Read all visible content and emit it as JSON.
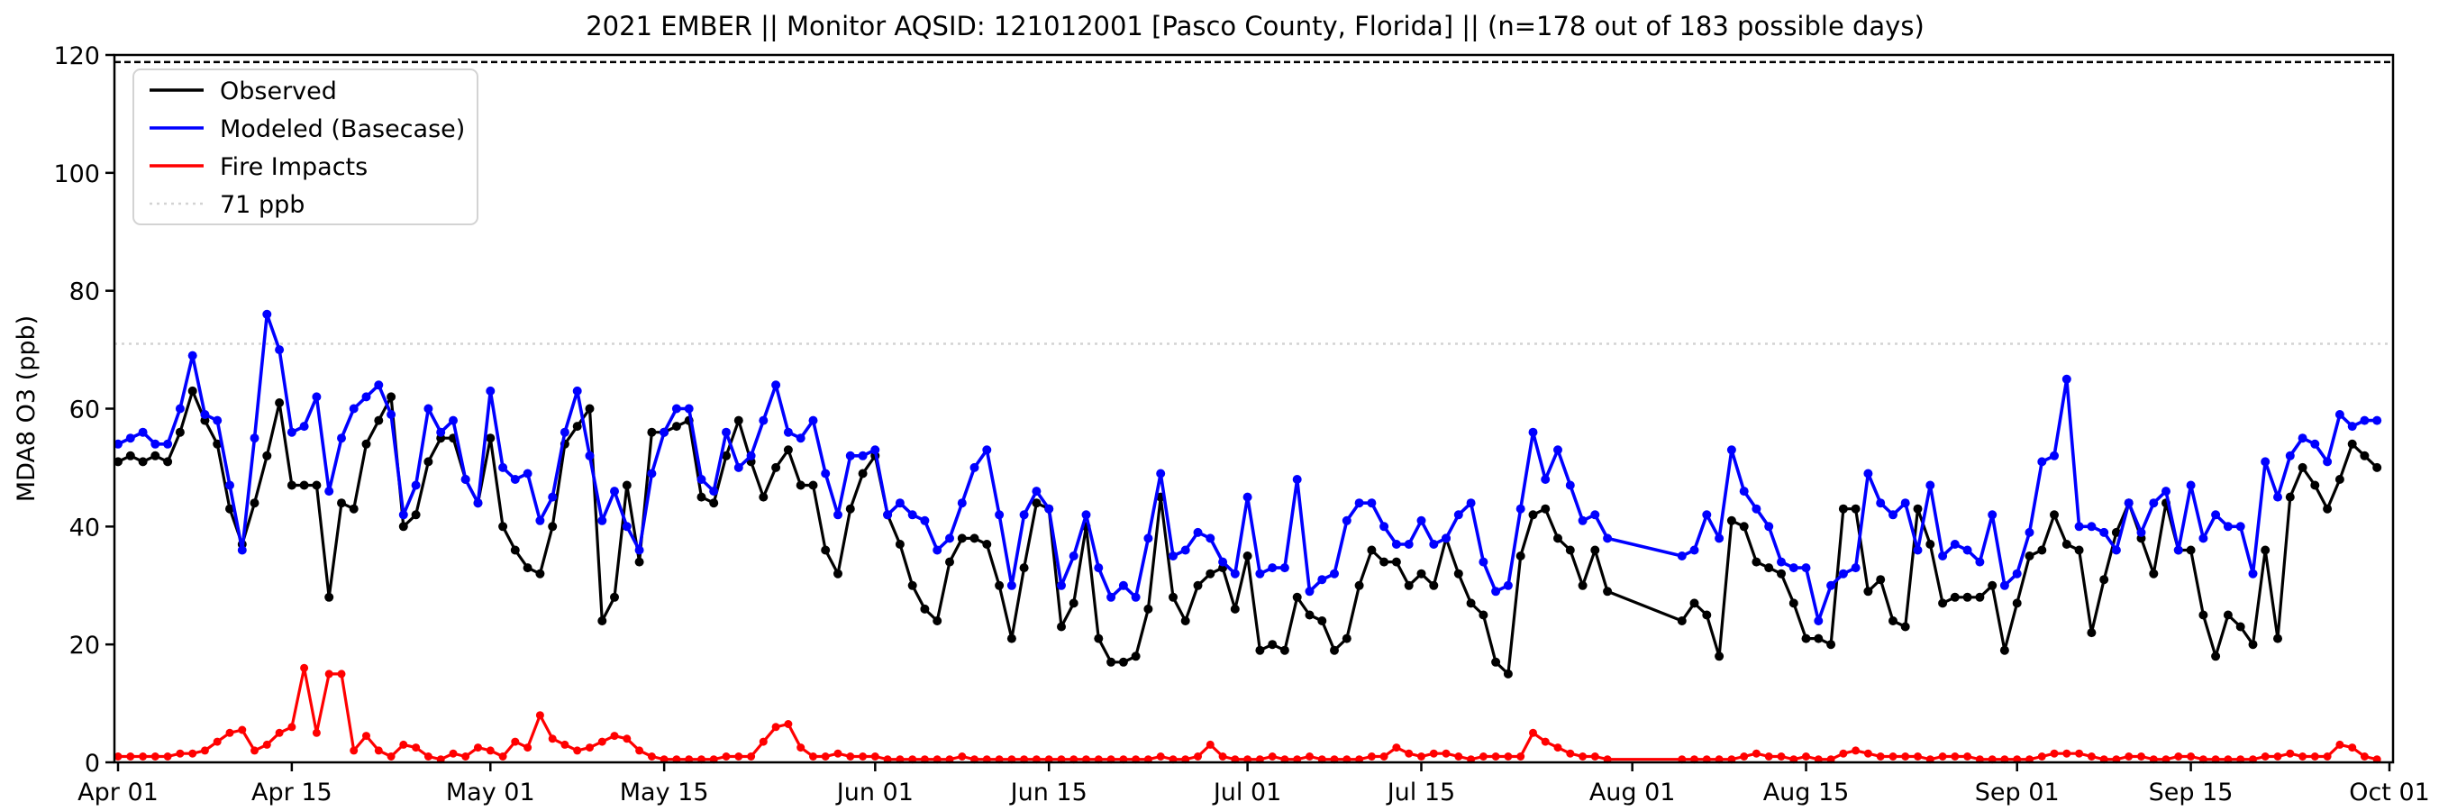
{
  "title": "2021 EMBER || Monitor AQSID: 121012001 [Pasco County, Florida] || (n=178 out of 183 possible days)",
  "y_axis": {
    "label": "MDA8 O3 (ppb)",
    "ticks": [
      0,
      20,
      40,
      60,
      80,
      100,
      120
    ],
    "min": 0,
    "max": 120
  },
  "x_axis": {
    "tick_labels": [
      "Apr 01",
      "Apr 15",
      "May 01",
      "May 15",
      "Jun 01",
      "Jun 15",
      "Jul 01",
      "Jul 15",
      "Aug 01",
      "Aug 15",
      "Sep 01",
      "Sep 15",
      "Oct 01"
    ],
    "tick_day_index": [
      0,
      14,
      30,
      44,
      61,
      75,
      91,
      105,
      122,
      136,
      153,
      167,
      183
    ],
    "start_date": "2021-04-01",
    "end_date": "2021-10-01",
    "total_days": 183
  },
  "legend": [
    {
      "label": "Observed",
      "color": "#000000",
      "style": "solid"
    },
    {
      "label": "Modeled (Basecase)",
      "color": "#0000ff",
      "style": "solid"
    },
    {
      "label": "Fire Impacts",
      "color": "#ff0000",
      "style": "solid"
    },
    {
      "label": "71 ppb",
      "color": "#d3d3d3",
      "style": "dotted"
    }
  ],
  "annotations": [
    {
      "type": "hline",
      "value": 71,
      "color": "#d3d3d3",
      "style": "dotted",
      "label": "71 ppb"
    },
    {
      "type": "hline",
      "value": 118.8,
      "color": "#000000",
      "style": "dashed",
      "label": ""
    }
  ],
  "chart_data": {
    "type": "line",
    "title": "2021 EMBER || Monitor AQSID: 121012001 [Pasco County, Florida] || (n=178 out of 183 possible days)",
    "xlabel": "",
    "ylabel": "MDA8 O3 (ppb)",
    "ylim": [
      0,
      120
    ],
    "grid": false,
    "legend_position": "upper-left",
    "x_start": "2021-04-01",
    "x_days": 183,
    "missing_days": [
      "2021-07-31",
      "2021-08-01",
      "2021-08-02",
      "2021-08-03",
      "2021-08-04"
    ],
    "series": [
      {
        "name": "Observed",
        "color": "#000000",
        "marker": "circle",
        "values": [
          51,
          52,
          51,
          52,
          51,
          56,
          63,
          58,
          54,
          43,
          37,
          44,
          52,
          61,
          47,
          47,
          47,
          28,
          44,
          43,
          54,
          58,
          62,
          40,
          42,
          51,
          55,
          55,
          48,
          44,
          55,
          40,
          36,
          33,
          32,
          40,
          54,
          57,
          60,
          24,
          28,
          47,
          34,
          56,
          56,
          57,
          58,
          45,
          44,
          52,
          58,
          51,
          45,
          50,
          53,
          47,
          47,
          36,
          32,
          43,
          49,
          52,
          42,
          37,
          30,
          26,
          24,
          34,
          38,
          38,
          37,
          30,
          21,
          33,
          44,
          43,
          23,
          27,
          40,
          21,
          17,
          17,
          18,
          26,
          45,
          28,
          24,
          30,
          32,
          33,
          26,
          35,
          19,
          20,
          19,
          28,
          25,
          24,
          19,
          21,
          30,
          36,
          34,
          34,
          30,
          32,
          30,
          38,
          32,
          27,
          25,
          17,
          15,
          35,
          42,
          43,
          38,
          36,
          30,
          36,
          29,
          null,
          null,
          null,
          null,
          null,
          24,
          27,
          25,
          18,
          41,
          40,
          34,
          33,
          32,
          27,
          21,
          21,
          20,
          43,
          43,
          29,
          31,
          24,
          23,
          43,
          37,
          27,
          28,
          28,
          28,
          30,
          19,
          27,
          35,
          36,
          42,
          37,
          36,
          22,
          31,
          39,
          44,
          38,
          32,
          44,
          36,
          36,
          25,
          18,
          25,
          23,
          20,
          36,
          21,
          45,
          50,
          47,
          43,
          48,
          54,
          52,
          50
        ]
      },
      {
        "name": "Modeled (Basecase)",
        "color": "#0000ff",
        "marker": "circle",
        "values": [
          54,
          55,
          56,
          54,
          54,
          60,
          69,
          59,
          58,
          47,
          36,
          55,
          76,
          70,
          56,
          57,
          62,
          46,
          55,
          60,
          62,
          64,
          59,
          42,
          47,
          60,
          56,
          58,
          48,
          44,
          63,
          50,
          48,
          49,
          41,
          45,
          56,
          63,
          52,
          41,
          46,
          40,
          36,
          49,
          56,
          60,
          60,
          48,
          46,
          56,
          50,
          52,
          58,
          64,
          56,
          55,
          58,
          49,
          42,
          52,
          52,
          53,
          42,
          44,
          42,
          41,
          36,
          38,
          44,
          50,
          53,
          42,
          30,
          42,
          46,
          43,
          30,
          35,
          42,
          33,
          28,
          30,
          28,
          38,
          49,
          35,
          36,
          39,
          38,
          34,
          32,
          45,
          32,
          33,
          33,
          48,
          29,
          31,
          32,
          41,
          44,
          44,
          40,
          37,
          37,
          41,
          37,
          38,
          42,
          44,
          34,
          29,
          30,
          43,
          56,
          48,
          53,
          47,
          41,
          42,
          38,
          null,
          null,
          null,
          null,
          null,
          35,
          36,
          42,
          38,
          53,
          46,
          43,
          40,
          34,
          33,
          33,
          24,
          30,
          32,
          33,
          49,
          44,
          42,
          44,
          36,
          47,
          35,
          37,
          36,
          34,
          42,
          30,
          32,
          39,
          51,
          52,
          65,
          40,
          40,
          39,
          36,
          44,
          39,
          44,
          46,
          36,
          47,
          38,
          42,
          40,
          40,
          32,
          51,
          45,
          52,
          55,
          54,
          51,
          59,
          57,
          58,
          58
        ]
      },
      {
        "name": "Fire Impacts",
        "color": "#ff0000",
        "marker": "circle",
        "values": [
          1,
          1,
          1,
          1,
          1,
          1.5,
          1.5,
          2,
          3.5,
          5,
          5.5,
          2,
          3,
          5,
          6,
          16,
          5,
          15,
          15,
          2,
          4.5,
          2,
          1,
          3,
          2.5,
          1,
          0.5,
          1.5,
          1,
          2.5,
          2,
          1,
          3.5,
          2.5,
          8,
          4,
          3,
          2,
          2.5,
          3.5,
          4.5,
          4,
          2,
          1,
          0.5,
          0.5,
          0.5,
          0.5,
          0.5,
          1,
          1,
          1,
          3.5,
          6,
          6.5,
          2.5,
          1,
          1,
          1.5,
          1,
          1,
          1,
          0.5,
          0.5,
          0.5,
          0.5,
          0.5,
          0.5,
          1,
          0.5,
          0.5,
          0.5,
          0.5,
          0.5,
          0.5,
          0.5,
          0.5,
          0.5,
          0.5,
          0.5,
          0.5,
          0.5,
          0.5,
          0.5,
          1,
          0.5,
          0.5,
          1,
          3,
          1,
          0.5,
          0.5,
          0.5,
          1,
          0.5,
          0.5,
          1,
          0.5,
          0.5,
          0.5,
          0.5,
          1,
          1,
          2.5,
          1.5,
          1,
          1.5,
          1.5,
          1,
          0.5,
          1,
          1,
          1,
          1,
          5,
          3.5,
          2.5,
          1.5,
          1,
          1,
          0.5,
          null,
          null,
          null,
          null,
          null,
          0.5,
          0.5,
          0.5,
          0.5,
          0.5,
          1,
          1.5,
          1,
          1,
          0.5,
          1,
          0.5,
          0.5,
          1.5,
          2,
          1.5,
          1,
          1,
          1,
          1,
          0.5,
          1,
          1,
          1,
          0.5,
          0.5,
          0.5,
          0.5,
          0.5,
          1,
          1.5,
          1.5,
          1.5,
          1,
          0.5,
          0.5,
          1,
          1,
          0.5,
          0.5,
          1,
          1,
          0.5,
          0.5,
          0.5,
          0.5,
          0.5,
          1,
          1,
          1.5,
          1,
          1,
          1,
          3,
          2.5,
          1,
          0.5
        ]
      }
    ]
  }
}
